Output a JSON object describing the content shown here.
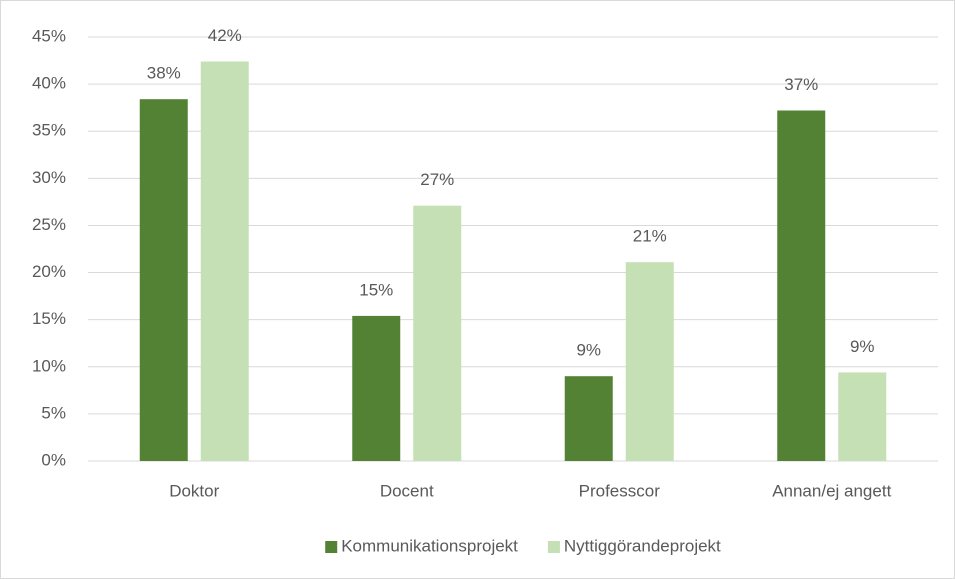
{
  "chart_data": {
    "type": "bar",
    "categories": [
      "Doktor",
      "Docent",
      "Professcor",
      "Annan/ej angett"
    ],
    "series": [
      {
        "name": "Kommunikationsprojekt",
        "color": "#548235",
        "values": [
          38.4,
          15.4,
          9.0,
          37.2
        ],
        "value_labels": [
          "38%",
          "15%",
          "9%",
          "37%"
        ]
      },
      {
        "name": "Nyttiggörandeprojekt",
        "color": "#c5e0b4",
        "values": [
          42.4,
          27.1,
          21.1,
          9.4
        ],
        "value_labels": [
          "42%",
          "27%",
          "21%",
          "9%"
        ]
      }
    ],
    "ylim": [
      0,
      45
    ],
    "yticks": [
      {
        "value": 0,
        "label": "0%"
      },
      {
        "value": 5,
        "label": "5%"
      },
      {
        "value": 10,
        "label": "10%"
      },
      {
        "value": 15,
        "label": "15%"
      },
      {
        "value": 20,
        "label": "20%"
      },
      {
        "value": 25,
        "label": "25%"
      },
      {
        "value": 30,
        "label": "30%"
      },
      {
        "value": 35,
        "label": "35%"
      },
      {
        "value": 40,
        "label": "40%"
      },
      {
        "value": 45,
        "label": "45%"
      }
    ],
    "grid": true,
    "legend": "bottom"
  }
}
